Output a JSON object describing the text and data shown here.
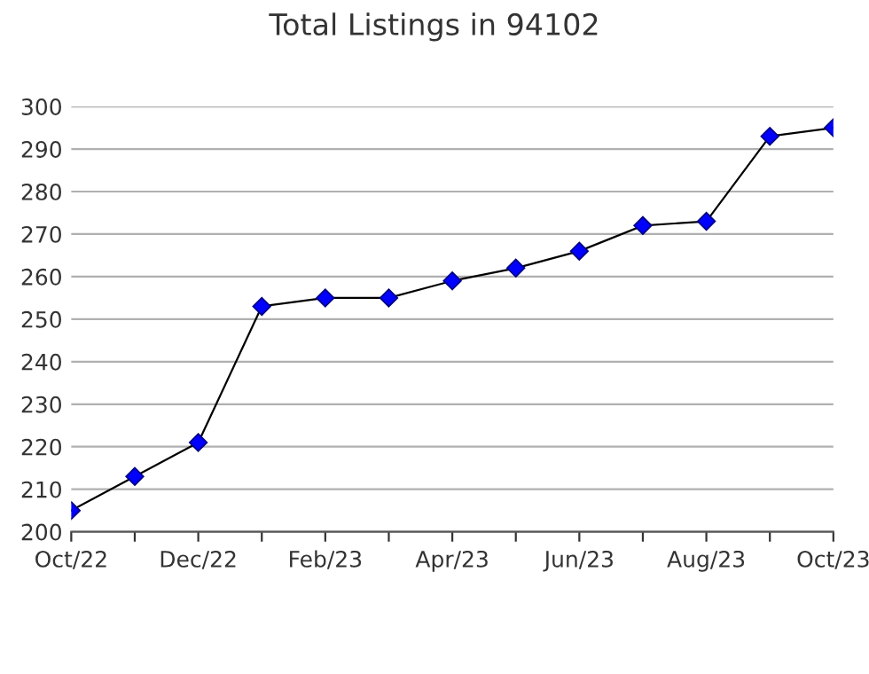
{
  "chart_data": {
    "type": "line",
    "title": "Total Listings in 94102",
    "categories": [
      "Oct/22",
      null,
      "Dec/22",
      null,
      "Feb/23",
      null,
      "Apr/23",
      null,
      "Jun/23",
      null,
      "Aug/23",
      null,
      "Oct/23"
    ],
    "series": [
      {
        "color": "#0000ff",
        "values": [
          205,
          213,
          221,
          253,
          255,
          255,
          259,
          262,
          266,
          272,
          273,
          293,
          295
        ]
      }
    ],
    "ylim": [
      200,
      300
    ],
    "yticks": [
      200,
      210,
      220,
      230,
      240,
      250,
      260,
      270,
      280,
      290,
      300
    ],
    "grid": "y",
    "marker": "diamond",
    "line_style": "solid"
  }
}
